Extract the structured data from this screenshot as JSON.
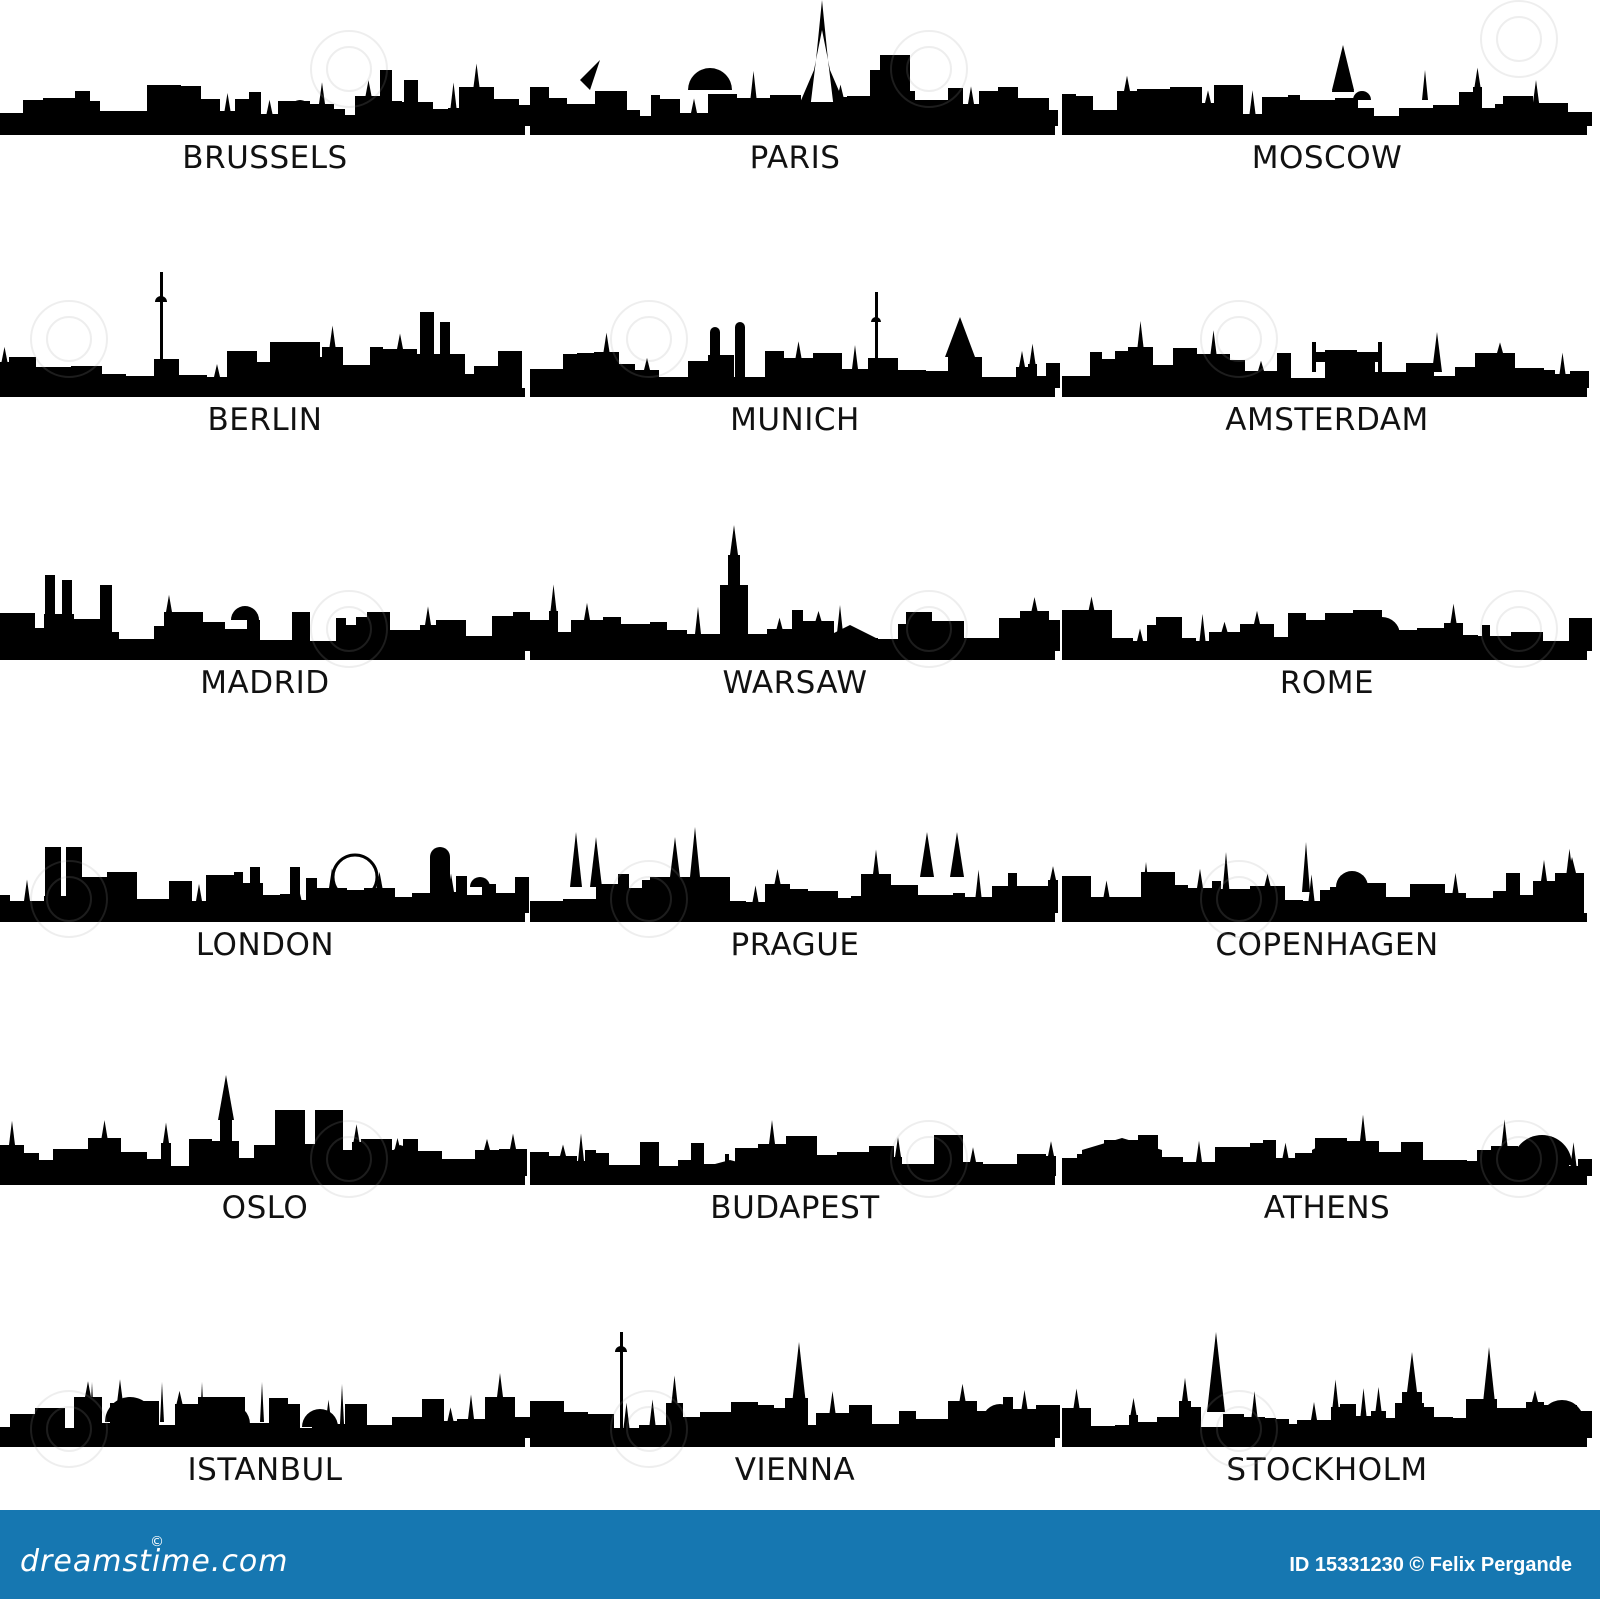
{
  "cities": [
    {
      "name": "BRUSSELS"
    },
    {
      "name": "PARIS"
    },
    {
      "name": "MOSCOW"
    },
    {
      "name": "BERLIN"
    },
    {
      "name": "MUNICH"
    },
    {
      "name": "AMSTERDAM"
    },
    {
      "name": "MADRID"
    },
    {
      "name": "WARSAW"
    },
    {
      "name": "ROME"
    },
    {
      "name": "LONDON"
    },
    {
      "name": "PRAGUE"
    },
    {
      "name": "COPENHAGEN"
    },
    {
      "name": "OSLO"
    },
    {
      "name": "BUDAPEST"
    },
    {
      "name": "ATHENS"
    },
    {
      "name": "ISTANBUL"
    },
    {
      "name": "VIENNA"
    },
    {
      "name": "STOCKHOLM"
    }
  ],
  "footer": {
    "logo_text": "dreamstime.com",
    "logo_mark": "©",
    "image_id": "ID 15331230 © Felix Pergande",
    "color": "#1677b1"
  },
  "colors": {
    "silhouette": "#000000",
    "background": "#ffffff"
  }
}
